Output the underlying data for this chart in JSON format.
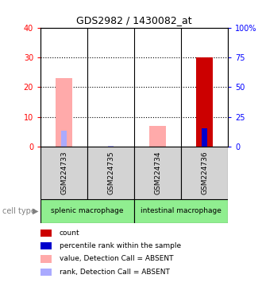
{
  "title": "GDS2982 / 1430082_at",
  "samples": [
    "GSM224733",
    "GSM224735",
    "GSM224734",
    "GSM224736"
  ],
  "cell_types": [
    {
      "label": "splenic macrophage",
      "span": [
        0,
        2
      ],
      "color": "#90EE90"
    },
    {
      "label": "intestinal macrophage",
      "span": [
        2,
        4
      ],
      "color": "#90EE90"
    }
  ],
  "bars": [
    {
      "sample": "GSM224733",
      "value_absent": 23.0,
      "rank_absent": 13.5,
      "count": 0,
      "percentile": 0
    },
    {
      "sample": "GSM224735",
      "value_absent": 0,
      "rank_absent": 1.0,
      "count": 0,
      "percentile": 0
    },
    {
      "sample": "GSM224734",
      "value_absent": 7.0,
      "rank_absent": 0.5,
      "count": 0,
      "percentile": 0
    },
    {
      "sample": "GSM224736",
      "value_absent": 15.0,
      "rank_absent": 15.5,
      "count": 30,
      "percentile": 15.5
    }
  ],
  "ylim_left": [
    0,
    40
  ],
  "ylim_right": [
    0,
    100
  ],
  "yticks_left": [
    0,
    10,
    20,
    30,
    40
  ],
  "yticks_right": [
    0,
    25,
    50,
    75,
    100
  ],
  "ytick_labels_right": [
    "0",
    "25",
    "50",
    "75",
    "100%"
  ],
  "color_count": "#cc0000",
  "color_percentile": "#0000cc",
  "color_value_absent": "#ffaaaa",
  "color_rank_absent": "#aaaaff",
  "sample_bg": "#d3d3d3",
  "legend_items": [
    {
      "color": "#cc0000",
      "label": "count"
    },
    {
      "color": "#0000cc",
      "label": "percentile rank within the sample"
    },
    {
      "color": "#ffaaaa",
      "label": "value, Detection Call = ABSENT"
    },
    {
      "color": "#aaaaff",
      "label": "rank, Detection Call = ABSENT"
    }
  ]
}
